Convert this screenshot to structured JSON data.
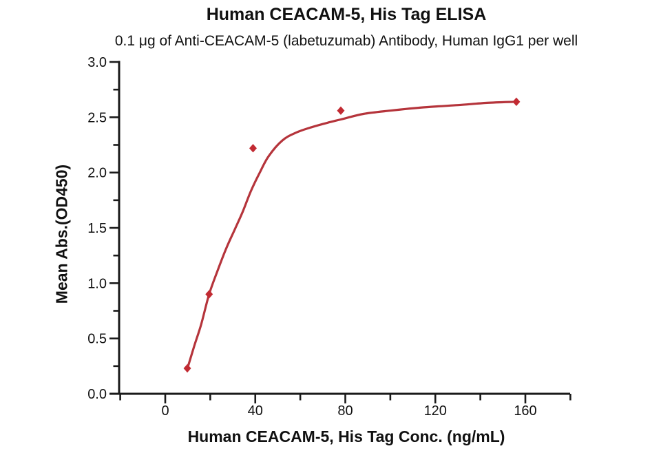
{
  "chart_data": {
    "type": "scatter",
    "title": "Human CEACAM-5, His Tag ELISA",
    "subtitle": "0.1 μg of Anti-CEACAM-5 (labetuzumab) Antibody, Human IgG1 per well",
    "xlabel": "Human CEACAM-5, His Tag Conc. (ng/mL)",
    "ylabel": "Mean Abs.(OD450)",
    "xlim": [
      -22,
      180
    ],
    "ylim": [
      0,
      3.0
    ],
    "grid": false,
    "legend": "none",
    "x_axis": {
      "major_ticks": [
        0,
        40,
        80,
        120,
        160
      ],
      "major_labels": [
        "0",
        "40",
        "80",
        "120",
        "160"
      ],
      "minor_ticks": [
        -20,
        20,
        60,
        100,
        140,
        180
      ]
    },
    "y_axis": {
      "major_ticks": [
        0,
        0.5,
        1.0,
        1.5,
        2.0,
        2.5,
        3.0
      ],
      "major_labels": [
        "0.0",
        "0.5",
        "1.0",
        "1.5",
        "2.0",
        "2.5",
        "3.0"
      ],
      "minor_ticks": [
        0.25,
        0.75,
        1.25,
        1.75,
        2.25,
        2.75
      ]
    },
    "series": [
      {
        "name": "measured-points",
        "type": "scatter",
        "marker": "diamond",
        "color": "#c22a32",
        "x": [
          9.8,
          19.5,
          39,
          78,
          156
        ],
        "y": [
          0.23,
          0.9,
          2.22,
          2.56,
          2.64
        ]
      },
      {
        "name": "4pl-fit-curve",
        "type": "line",
        "color": "#b5343b",
        "points": [
          [
            9.8,
            0.225
          ],
          [
            13,
            0.44
          ],
          [
            16,
            0.63
          ],
          [
            19.5,
            0.9
          ],
          [
            23,
            1.1
          ],
          [
            27,
            1.31
          ],
          [
            31,
            1.49
          ],
          [
            34.5,
            1.65
          ],
          [
            38,
            1.83
          ],
          [
            42,
            2.0
          ],
          [
            46,
            2.15
          ],
          [
            52,
            2.29
          ],
          [
            58,
            2.36
          ],
          [
            65,
            2.41
          ],
          [
            72,
            2.45
          ],
          [
            78,
            2.48
          ],
          [
            88,
            2.53
          ],
          [
            100,
            2.56
          ],
          [
            115,
            2.59
          ],
          [
            130,
            2.61
          ],
          [
            143,
            2.63
          ],
          [
            156,
            2.64
          ]
        ]
      }
    ],
    "colors": {
      "axis": "#1a1a1a",
      "text": "#111111",
      "background": "#ffffff"
    }
  }
}
